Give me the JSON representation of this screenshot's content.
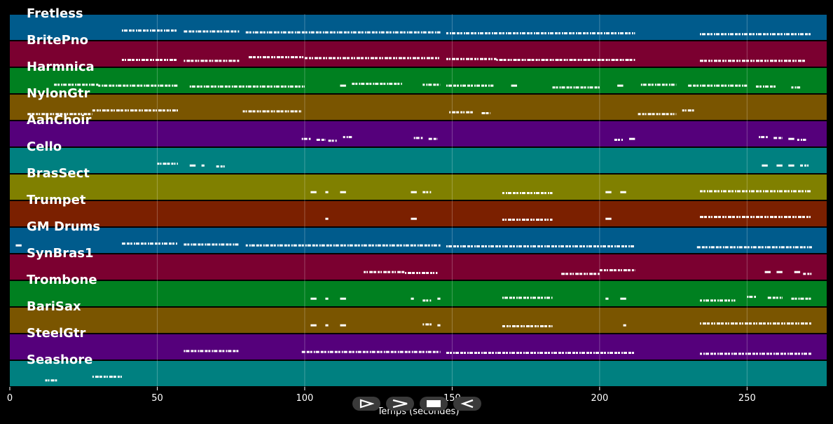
{
  "chart_data": {
    "type": "piano-roll",
    "xlabel": "Temps (secondes)",
    "xlim": [
      0,
      277
    ],
    "xticks": [
      0,
      50,
      100,
      150,
      200,
      250
    ],
    "grid": true,
    "tracks": [
      {
        "name": "Fretless",
        "color": "#005b8c",
        "segments": [
          [
            38,
            57
          ],
          [
            59,
            78
          ],
          [
            80,
            146
          ],
          [
            148,
            212
          ],
          [
            234,
            272
          ]
        ]
      },
      {
        "name": "BritePno",
        "color": "#7b0030",
        "segments": [
          [
            38,
            57
          ],
          [
            59,
            78
          ],
          [
            81,
            100
          ],
          [
            100,
            146
          ],
          [
            148,
            165
          ],
          [
            165,
            212
          ],
          [
            234,
            270
          ]
        ]
      },
      {
        "name": "Harmnica",
        "color": "#008020",
        "segments": [
          [
            15,
            30
          ],
          [
            30,
            57
          ],
          [
            61,
            100
          ],
          [
            112,
            114
          ],
          [
            116,
            133
          ],
          [
            140,
            146
          ],
          [
            148,
            164
          ],
          [
            170,
            172
          ],
          [
            184,
            200
          ],
          [
            206,
            208
          ],
          [
            214,
            226
          ],
          [
            230,
            250
          ],
          [
            253,
            260
          ],
          [
            265,
            268
          ]
        ]
      },
      {
        "name": "NylonGtr",
        "color": "#7a5500",
        "segments": [
          [
            6,
            28
          ],
          [
            28,
            57
          ],
          [
            79,
            99
          ],
          [
            149,
            157
          ],
          [
            160,
            163
          ],
          [
            213,
            226
          ],
          [
            228,
            232
          ]
        ]
      },
      {
        "name": "AahChoir",
        "color": "#55007b",
        "segments": [
          [
            99,
            102
          ],
          [
            104,
            107
          ],
          [
            108,
            111
          ],
          [
            113,
            116
          ],
          [
            137,
            140
          ],
          [
            142,
            145
          ],
          [
            205,
            208
          ],
          [
            210,
            212
          ],
          [
            254,
            257
          ],
          [
            259,
            262
          ],
          [
            264,
            266
          ],
          [
            267,
            270
          ]
        ]
      },
      {
        "name": "Cello",
        "color": "#008080",
        "segments": [
          [
            50,
            57
          ],
          [
            61,
            63
          ],
          [
            65,
            66
          ],
          [
            70,
            73
          ],
          [
            255,
            257
          ],
          [
            260,
            262
          ],
          [
            264,
            266
          ],
          [
            268,
            271
          ]
        ]
      },
      {
        "name": "BrasSect",
        "color": "#808000",
        "segments": [
          [
            102,
            104
          ],
          [
            107,
            108
          ],
          [
            112,
            114
          ],
          [
            136,
            138
          ],
          [
            140,
            143
          ],
          [
            167,
            184
          ],
          [
            202,
            204
          ],
          [
            207,
            209
          ],
          [
            234,
            272
          ]
        ]
      },
      {
        "name": "Trumpet",
        "color": "#7b2000",
        "segments": [
          [
            107,
            108
          ],
          [
            136,
            138
          ],
          [
            167,
            184
          ],
          [
            202,
            204
          ],
          [
            234,
            272
          ]
        ]
      },
      {
        "name": "GM Drums",
        "color": "#005b8c",
        "segments": [
          [
            2,
            4
          ],
          [
            38,
            57
          ],
          [
            59,
            78
          ],
          [
            80,
            146
          ],
          [
            148,
            212
          ],
          [
            233,
            272
          ]
        ]
      },
      {
        "name": "SynBras1",
        "color": "#7b0030",
        "segments": [
          [
            120,
            134
          ],
          [
            134,
            145
          ],
          [
            187,
            200
          ],
          [
            200,
            212
          ],
          [
            256,
            258
          ],
          [
            260,
            262
          ],
          [
            266,
            268
          ],
          [
            269,
            272
          ]
        ]
      },
      {
        "name": "Trombone",
        "color": "#008020",
        "segments": [
          [
            102,
            104
          ],
          [
            107,
            108
          ],
          [
            112,
            114
          ],
          [
            136,
            137
          ],
          [
            140,
            143
          ],
          [
            145,
            146
          ],
          [
            167,
            184
          ],
          [
            202,
            203
          ],
          [
            207,
            209
          ],
          [
            234,
            246
          ],
          [
            250,
            253
          ],
          [
            257,
            262
          ],
          [
            265,
            272
          ]
        ]
      },
      {
        "name": "BariSax",
        "color": "#7a5500",
        "segments": [
          [
            102,
            104
          ],
          [
            107,
            108
          ],
          [
            112,
            114
          ],
          [
            140,
            143
          ],
          [
            145,
            146
          ],
          [
            167,
            184
          ],
          [
            208,
            209
          ],
          [
            234,
            272
          ]
        ]
      },
      {
        "name": "SteelGtr",
        "color": "#55007b",
        "segments": [
          [
            59,
            78
          ],
          [
            99,
            146
          ],
          [
            148,
            212
          ],
          [
            234,
            272
          ]
        ]
      },
      {
        "name": "Seashore",
        "color": "#008080",
        "segments": [
          [
            12,
            16
          ],
          [
            28,
            38
          ]
        ]
      }
    ]
  },
  "controls": {
    "icons": [
      "play-icon",
      "forward-icon",
      "stop-icon",
      "rewind-icon"
    ]
  }
}
